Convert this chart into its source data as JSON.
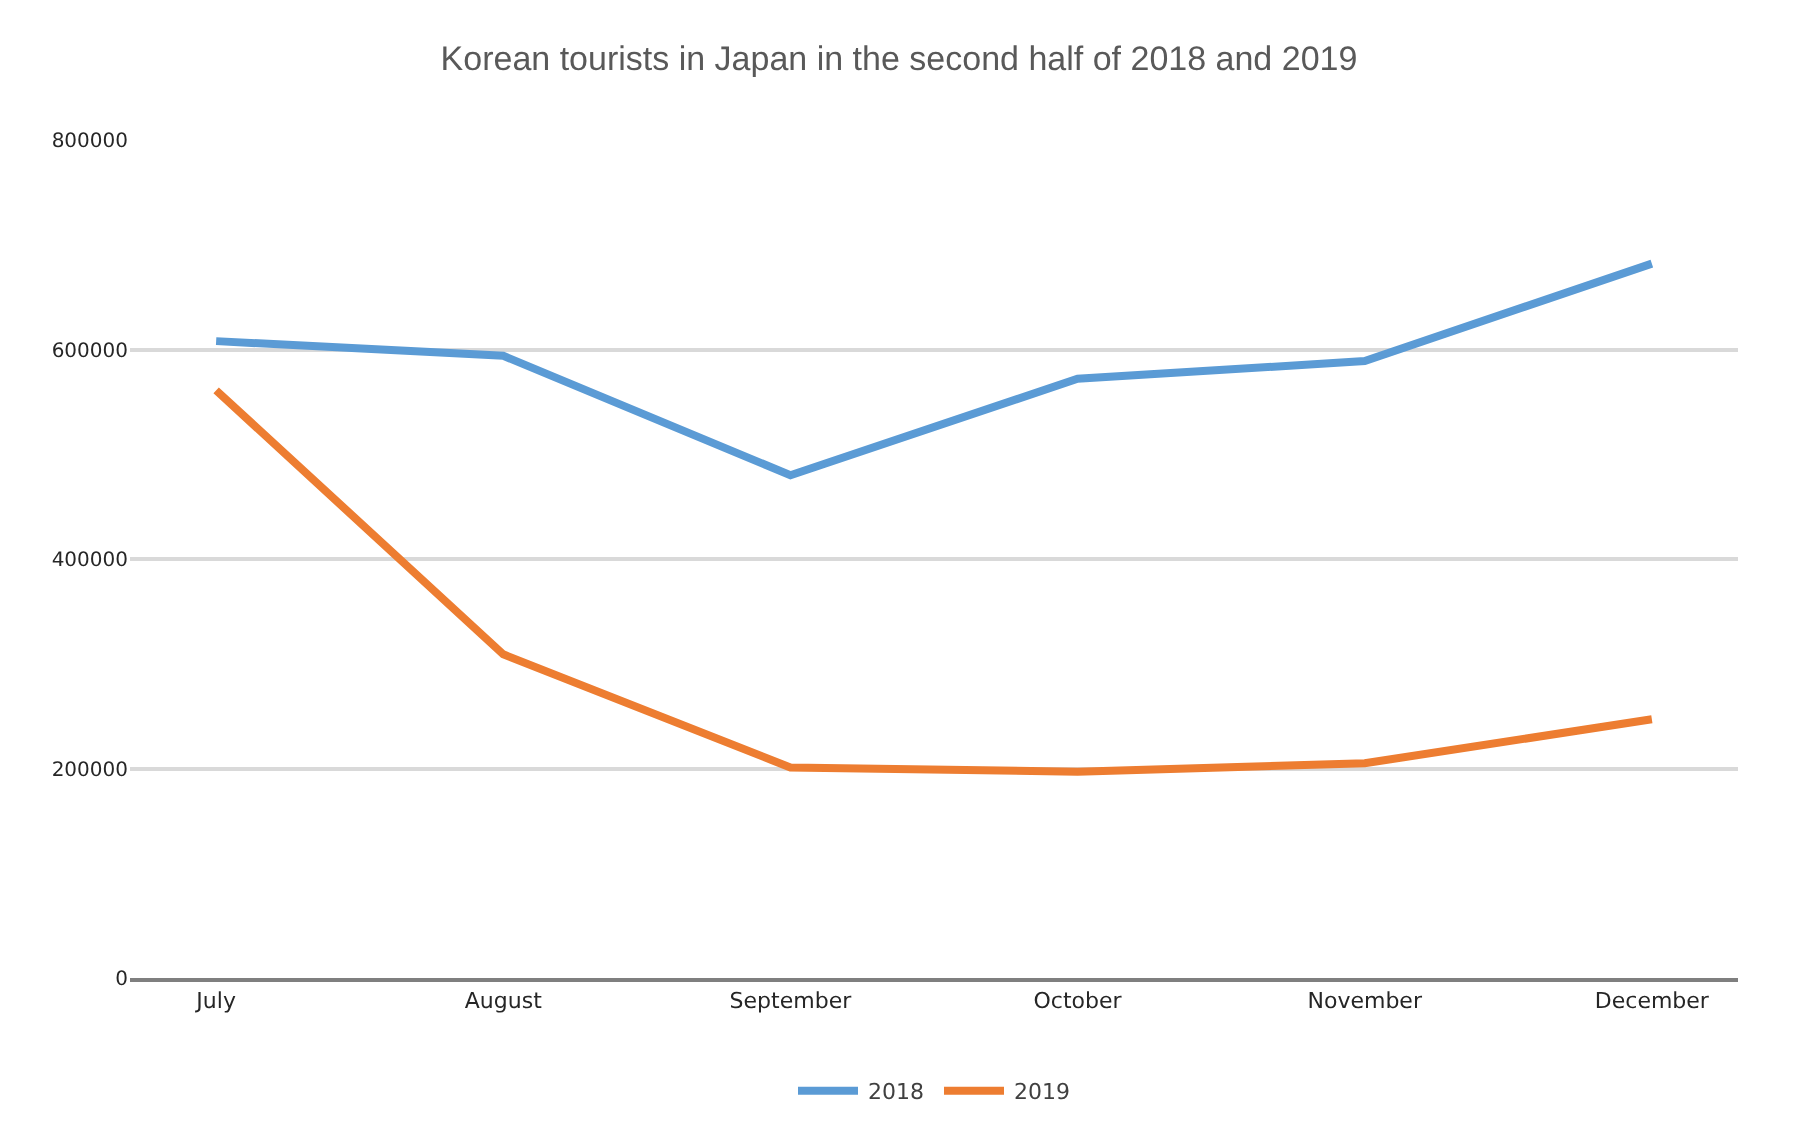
{
  "chart_data": {
    "type": "line",
    "title": "Korean tourists in Japan in the second half of 2018 and 2019",
    "categories": [
      "July",
      "August",
      "September",
      "October",
      "November",
      "December"
    ],
    "series": [
      {
        "name": "2018",
        "color": "#5b9bd5",
        "values": [
          608000,
          594000,
          480000,
          572000,
          589000,
          682000
        ]
      },
      {
        "name": "2019",
        "color": "#ed7d31",
        "values": [
          561000,
          309000,
          201000,
          197000,
          205000,
          247000
        ]
      }
    ],
    "ylim": [
      0,
      800000
    ],
    "yticks": [
      0,
      200000,
      400000,
      600000,
      800000
    ],
    "grid": "y",
    "legend": "bottom",
    "marker": "none",
    "line_style": "solid"
  }
}
